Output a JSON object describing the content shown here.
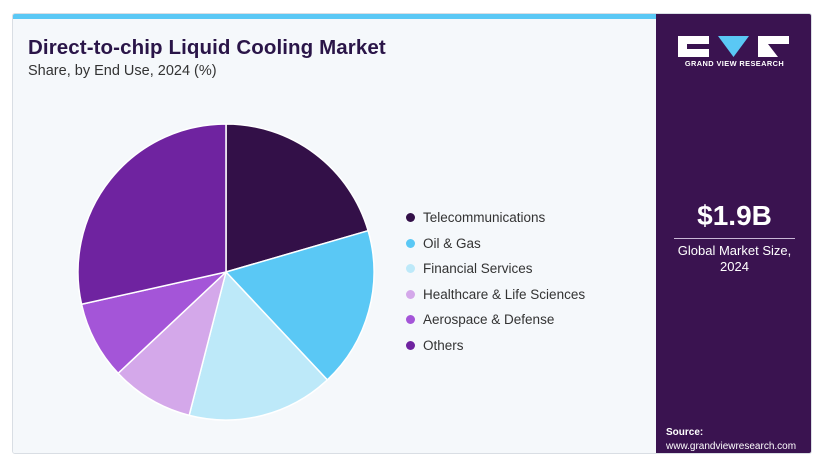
{
  "header": {
    "title": "Direct-to-chip Liquid Cooling Market",
    "subtitle": "Share, by End Use, 2024 (%)"
  },
  "brand": {
    "name": "GRAND VIEW RESEARCH",
    "logo_icon": "gvr-logo-icon"
  },
  "market": {
    "value": "$1.9B",
    "label_line1": "Global Market Size,",
    "label_line2": "2024"
  },
  "source": {
    "title": "Source:",
    "url": "www.grandviewresearch.com"
  },
  "colors": {
    "accent": "#5ac8f5",
    "sidebar": "#3a1350",
    "title": "#2a1548"
  },
  "chart_data": {
    "type": "pie",
    "title": "Direct-to-chip Liquid Cooling Market",
    "subtitle": "Share, by End Use, 2024 (%)",
    "legend_placement": "right",
    "start_angle": "top, clockwise",
    "categories": [
      "Telecommunications",
      "Oil & Gas",
      "Financial Services",
      "Healthcare & Life Sciences",
      "Aerospace & Defense",
      "Others"
    ],
    "values": [
      20.5,
      17.5,
      16,
      9,
      8.5,
      28.5
    ],
    "colors": [
      "#331048",
      "#5ac8f5",
      "#bde9f9",
      "#d4a8ea",
      "#a455d8",
      "#6f23a0"
    ]
  }
}
